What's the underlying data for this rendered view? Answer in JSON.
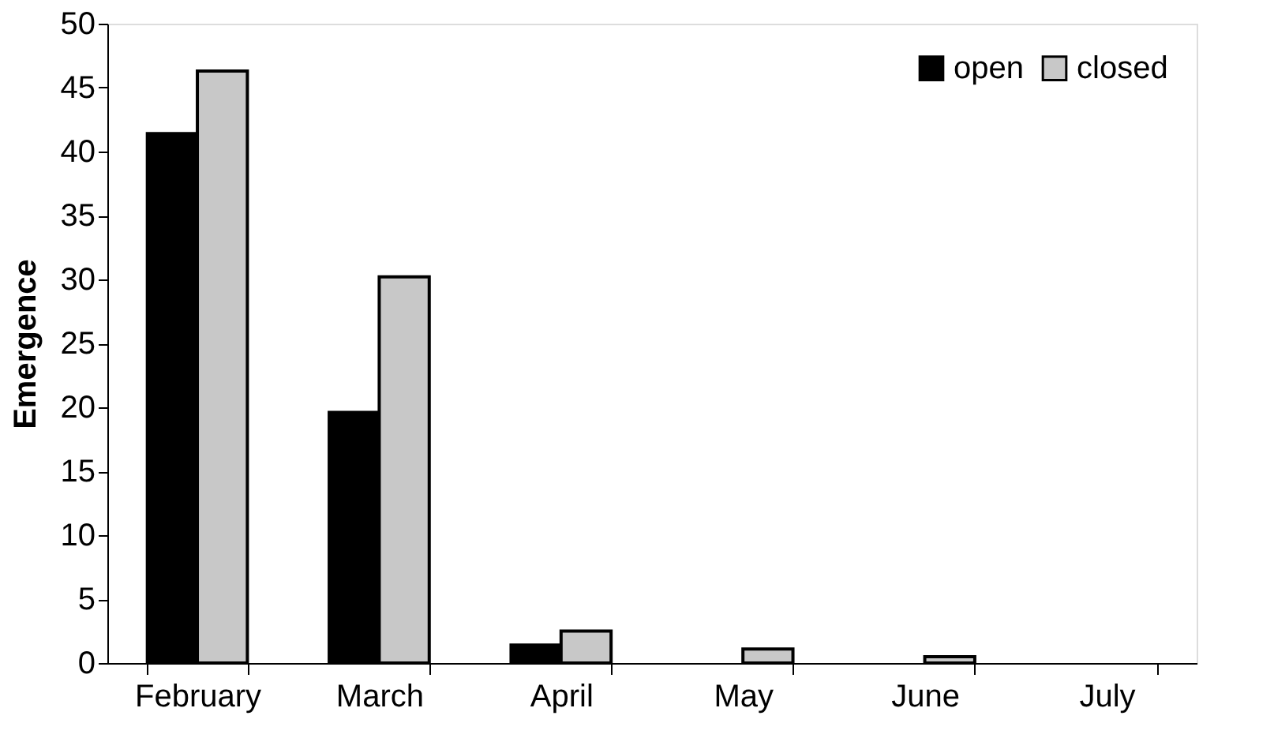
{
  "chart_data": {
    "type": "bar",
    "ylabel": "Emergence",
    "categories": [
      "February",
      "March",
      "April",
      "May",
      "June",
      "July"
    ],
    "series": [
      {
        "name": "open",
        "color": "#000000",
        "values": [
          41.4,
          19.6,
          1.4,
          0,
          0,
          0
        ]
      },
      {
        "name": "closed",
        "color": "#c8c8c8",
        "values": [
          46.3,
          30.2,
          2.5,
          1.1,
          0.5,
          0
        ]
      }
    ],
    "ylim": [
      0,
      50
    ],
    "yticks": [
      0,
      5,
      10,
      15,
      20,
      25,
      30,
      35,
      40,
      45,
      50
    ],
    "grid": false,
    "legend": "top right"
  }
}
